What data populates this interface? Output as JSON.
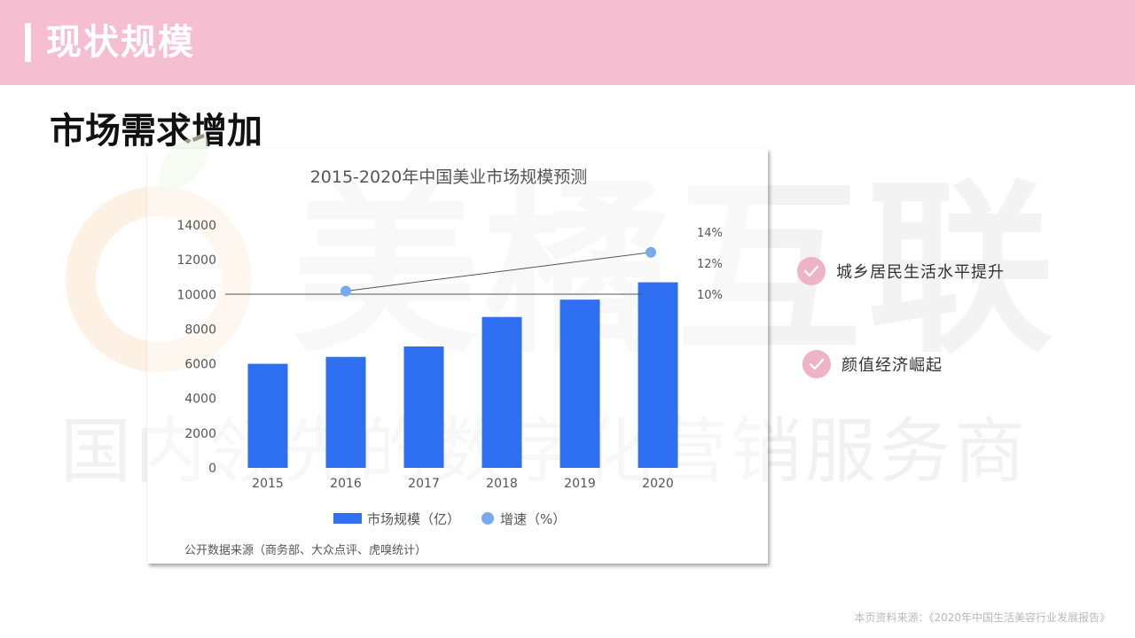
{
  "header": {
    "title": "现状规模"
  },
  "subtitle": "市场需求增加",
  "watermark": {
    "brand": "美橘互联",
    "slogan": "国内领先的数字化营销服务商"
  },
  "chart_data": {
    "type": "bar",
    "title": "2015-2020年中国美业市场规模预测",
    "categories": [
      "2015",
      "2016",
      "2017",
      "2018",
      "2019",
      "2020"
    ],
    "series": [
      {
        "name": "市场规模（亿）",
        "axis": "left",
        "values": [
          6000,
          6400,
          7000,
          8700,
          9700,
          10700
        ],
        "color": "#2f6ff2"
      },
      {
        "name": "增速（%）",
        "axis": "right",
        "type": "line",
        "points": [
          {
            "x": "2016",
            "y": 10.2
          },
          {
            "x": "2020",
            "y": 12.7
          }
        ],
        "color": "#74aaf0"
      }
    ],
    "left_axis": {
      "ylim": [
        0,
        14000
      ],
      "ticks": [
        "0",
        "2000",
        "4000",
        "6000",
        "8000",
        "10000",
        "12000",
        "14000"
      ]
    },
    "right_axis": {
      "ylim": [
        0,
        14
      ],
      "ticks": [
        "10%",
        "12%",
        "14%"
      ],
      "tick_values": [
        10,
        12,
        14
      ]
    },
    "reference_line": {
      "axis": "right",
      "value": 10
    },
    "legend": {
      "placement": "bottom",
      "items": [
        "市场规模（亿）",
        "增速（%）"
      ]
    },
    "source_note": "公开数据来源（商务部、大众点评、虎嗅统计）",
    "grid": false
  },
  "points": [
    {
      "text": "城乡居民生活水平提升",
      "icon": "check-icon"
    },
    {
      "text": "颜值经济崛起",
      "icon": "check-icon"
    }
  ],
  "footer": {
    "source": "本页资料来源：《2020年中国生活美容行业发展报告》"
  },
  "colors": {
    "header_bg": "#f6bfd1",
    "bar": "#2f6ff2",
    "dot": "#74aaf0",
    "check_bg": "#efb3c8"
  }
}
